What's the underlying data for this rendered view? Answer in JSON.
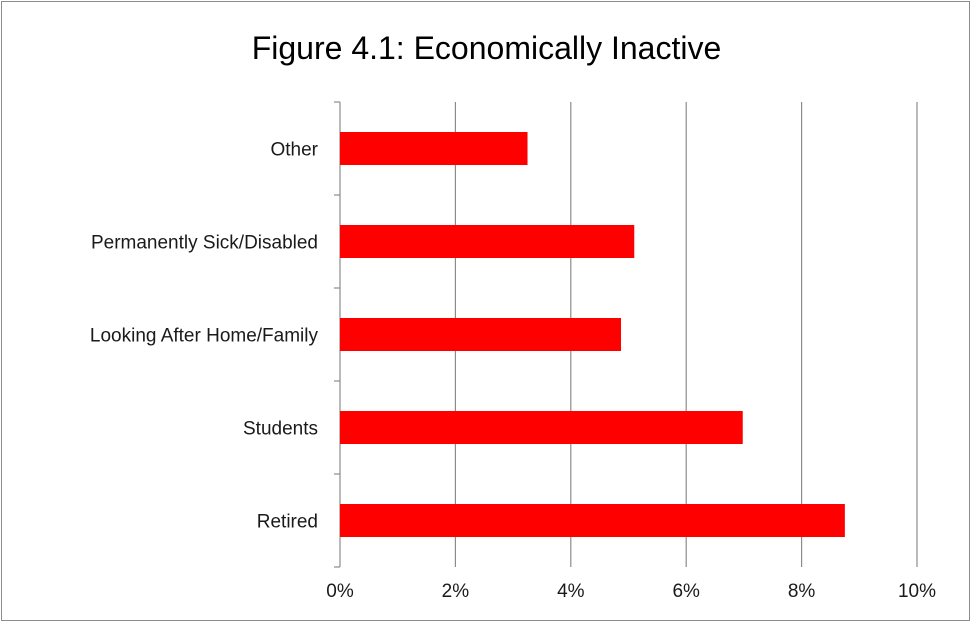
{
  "chart_data": {
    "type": "bar",
    "orientation": "horizontal",
    "title": "Figure 4.1: Economically Inactive",
    "categories": [
      "Retired",
      "Students",
      "Looking After Home/Family",
      "Permanently Sick/Disabled",
      "Other"
    ],
    "values": [
      8.75,
      6.98,
      4.87,
      5.1,
      3.25
    ],
    "value_unit": "%",
    "xlim": [
      0,
      10
    ],
    "xticks": [
      0,
      2,
      4,
      6,
      8,
      10
    ],
    "xtick_labels": [
      "0%",
      "2%",
      "4%",
      "6%",
      "8%",
      "10%"
    ],
    "grid": "vertical",
    "legend": "none",
    "bar_color": "#ff0000"
  }
}
